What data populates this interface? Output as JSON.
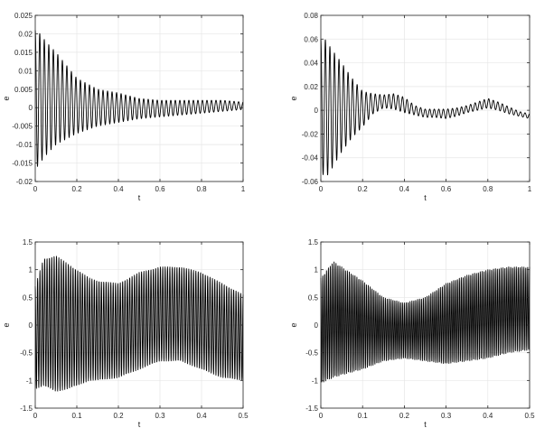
{
  "figure": {
    "layout": "2x2 grid of line plots"
  },
  "chart_data": [
    {
      "type": "line",
      "title": "",
      "xlabel": "t",
      "ylabel": "e",
      "xlim": [
        0,
        1
      ],
      "ylim": [
        -0.02,
        0.025
      ],
      "xticks": [
        0,
        0.2,
        0.4,
        0.6,
        0.8,
        1
      ],
      "xtick_labels": [
        "0",
        "0.2",
        "0.4",
        "0.6",
        "0.8",
        "1"
      ],
      "yticks": [
        -0.02,
        -0.015,
        -0.01,
        -0.005,
        0,
        0.005,
        0.01,
        0.015,
        0.02,
        0.025
      ],
      "ytick_labels": [
        "-0.02",
        "-0.015",
        "-0.01",
        "-0.005",
        "0",
        "0.005",
        "0.01",
        "0.015",
        "0.02",
        "0.025"
      ],
      "grid": true,
      "legend": "none",
      "line_color": "#000000",
      "series": [
        {
          "oscillation_cycles": 46,
          "envelope": {
            "t": [
              0,
              0.01,
              0.05,
              0.1,
              0.2,
              0.3,
              0.4,
              0.5,
              0.6,
              0.7,
              0.8,
              0.9,
              1.0
            ],
            "upper": [
              0.021,
              0.021,
              0.018,
              0.015,
              0.008,
              0.005,
              0.004,
              0.0025,
              0.002,
              0.002,
              0.002,
              0.002,
              0.0015
            ],
            "lower": [
              -0.016,
              -0.016,
              -0.013,
              -0.01,
              -0.007,
              -0.005,
              -0.004,
              -0.003,
              -0.0025,
              -0.002,
              -0.0015,
              -0.001,
              -0.0005
            ]
          }
        }
      ]
    },
    {
      "type": "line",
      "title": "",
      "xlabel": "t",
      "ylabel": "e",
      "xlim": [
        0,
        1
      ],
      "ylim": [
        -0.06,
        0.08
      ],
      "xticks": [
        0,
        0.2,
        0.4,
        0.6,
        0.8,
        1
      ],
      "xtick_labels": [
        "0",
        "0.2",
        "0.4",
        "0.6",
        "0.8",
        "1"
      ],
      "yticks": [
        -0.06,
        -0.04,
        -0.02,
        0,
        0.02,
        0.04,
        0.06,
        0.08
      ],
      "ytick_labels": [
        "-0.06",
        "-0.04",
        "-0.02",
        "0",
        "0.02",
        "0.04",
        "0.06",
        "0.08"
      ],
      "grid": true,
      "legend": "none",
      "line_color": "#000000",
      "series": [
        {
          "oscillation_cycles": 46,
          "envelope": {
            "t": [
              0,
              0.02,
              0.05,
              0.1,
              0.15,
              0.2,
              0.25,
              0.3,
              0.35,
              0.4,
              0.45,
              0.5,
              0.55,
              0.6,
              0.65,
              0.7,
              0.75,
              0.8,
              0.85,
              0.9,
              0.95,
              1.0
            ],
            "upper": [
              0.06,
              0.06,
              0.052,
              0.04,
              0.027,
              0.016,
              0.014,
              0.013,
              0.014,
              0.011,
              0.004,
              0.001,
              0.001,
              0.001,
              0.002,
              0.004,
              0.007,
              0.01,
              0.007,
              0.003,
              -0.001,
              -0.003
            ],
            "lower": [
              -0.05,
              -0.058,
              -0.05,
              -0.035,
              -0.023,
              -0.014,
              -0.003,
              0.002,
              0.001,
              -0.002,
              -0.004,
              -0.006,
              -0.006,
              -0.007,
              -0.005,
              -0.002,
              0.0,
              0.002,
              0.0,
              -0.003,
              -0.005,
              -0.007
            ]
          }
        }
      ]
    },
    {
      "type": "line",
      "title": "",
      "xlabel": "t",
      "ylabel": "e",
      "xlim": [
        0,
        0.5
      ],
      "ylim": [
        -1.5,
        1.5
      ],
      "xticks": [
        0,
        0.1,
        0.2,
        0.3,
        0.4,
        0.5
      ],
      "xtick_labels": [
        "0",
        "0.1",
        "0.2",
        "0.3",
        "0.4",
        "0.5"
      ],
      "yticks": [
        -1.5,
        -1,
        -0.5,
        0,
        0.5,
        1,
        1.5
      ],
      "ytick_labels": [
        "-1.5",
        "-1",
        "-0.5",
        "0",
        "0.5",
        "1",
        "1.5"
      ],
      "grid": true,
      "legend": "none",
      "line_color": "#000000",
      "series": [
        {
          "oscillation_cycles": 88,
          "envelope": {
            "t": [
              0,
              0.02,
              0.05,
              0.08,
              0.1,
              0.13,
              0.15,
              0.2,
              0.25,
              0.3,
              0.35,
              0.4,
              0.45,
              0.5
            ],
            "upper": [
              0.7,
              1.2,
              1.25,
              1.1,
              1.0,
              0.85,
              0.8,
              0.75,
              0.95,
              1.05,
              1.05,
              0.95,
              0.75,
              0.55
            ],
            "lower": [
              -1.15,
              -1.1,
              -1.2,
              -1.15,
              -1.1,
              -1.0,
              -1.0,
              -0.95,
              -0.8,
              -0.65,
              -0.65,
              -0.8,
              -0.95,
              -1.0
            ]
          }
        }
      ]
    },
    {
      "type": "line",
      "title": "",
      "xlabel": "t",
      "ylabel": "e",
      "xlim": [
        0,
        0.5
      ],
      "ylim": [
        -1.5,
        1.5
      ],
      "xticks": [
        0,
        0.1,
        0.2,
        0.3,
        0.4,
        0.5
      ],
      "xtick_labels": [
        "0",
        "0.1",
        "0.2",
        "0.3",
        "0.4",
        "0.5"
      ],
      "yticks": [
        -1.5,
        -1,
        -0.5,
        0,
        0.5,
        1,
        1.5
      ],
      "ytick_labels": [
        "-1.5",
        "-1",
        "-0.5",
        "0",
        "0.5",
        "1",
        "1.5"
      ],
      "grid": true,
      "legend": "none",
      "line_color": "#000000",
      "series": [
        {
          "oscillation_cycles": 110,
          "envelope": {
            "t": [
              0,
              0.03,
              0.05,
              0.1,
              0.15,
              0.2,
              0.25,
              0.3,
              0.35,
              0.4,
              0.45,
              0.5
            ],
            "upper": [
              0.85,
              1.15,
              1.05,
              0.8,
              0.5,
              0.4,
              0.5,
              0.75,
              0.9,
              1.0,
              1.05,
              1.05
            ],
            "lower": [
              -1.05,
              -0.95,
              -0.9,
              -0.8,
              -0.65,
              -0.6,
              -0.65,
              -0.7,
              -0.65,
              -0.6,
              -0.5,
              -0.45
            ]
          }
        }
      ]
    }
  ]
}
